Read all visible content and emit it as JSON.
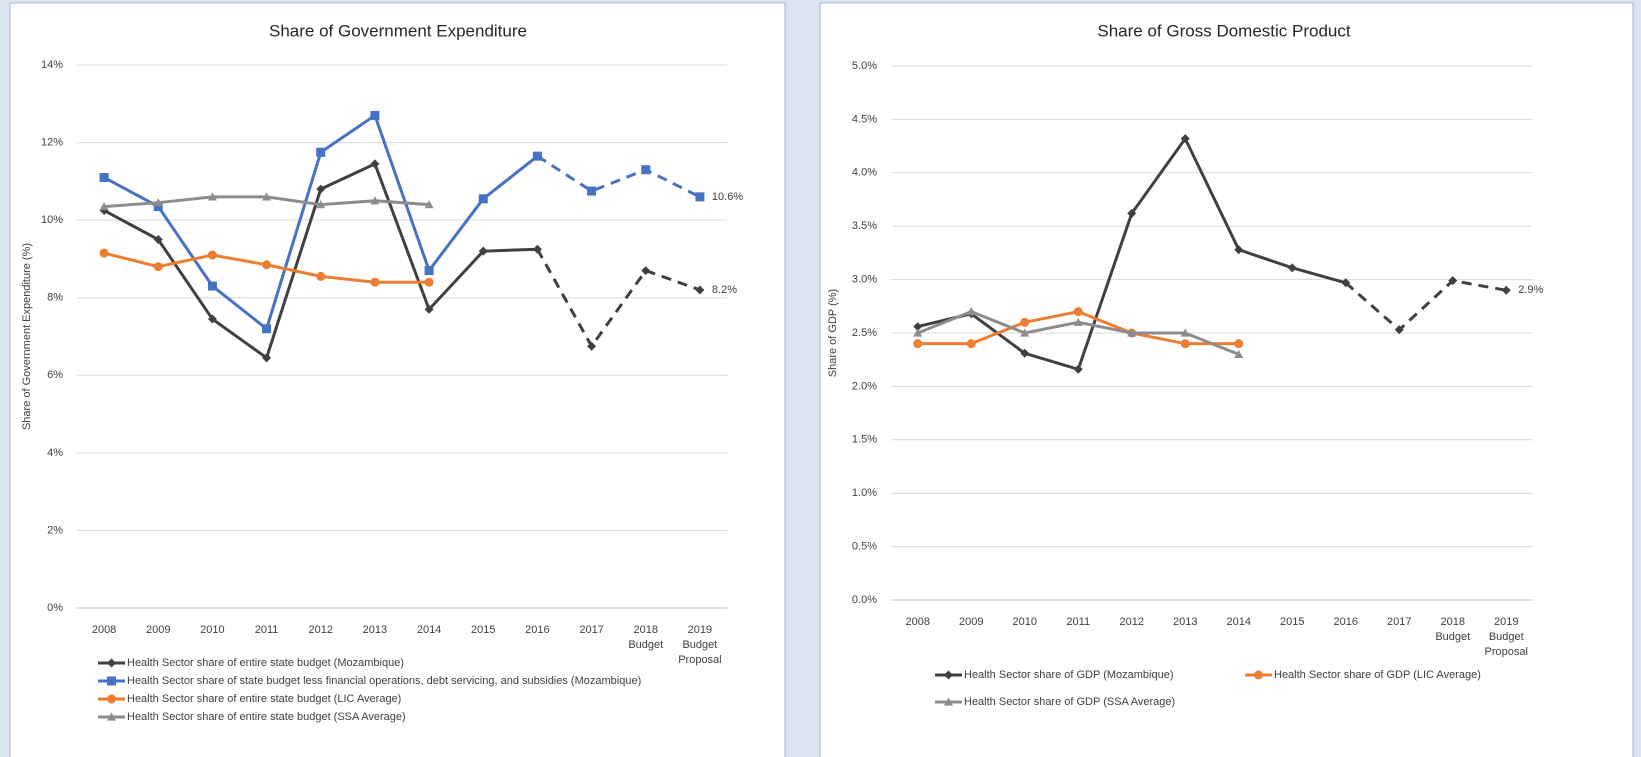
{
  "chart_data": [
    {
      "type": "line",
      "title": "Share of Government Expenditure",
      "y_label": "Share of Government Expenditure (%)",
      "categories": [
        "2008",
        "2009",
        "2010",
        "2011",
        "2012",
        "2013",
        "2014",
        "2015",
        "2016",
        "2017",
        "2018 Budget",
        "2019 Budget Proposal"
      ],
      "ylim": [
        0,
        14
      ],
      "yticks": [
        {
          "value": 0,
          "label": "0%"
        },
        {
          "value": 2,
          "label": "2%"
        },
        {
          "value": 4,
          "label": "4%"
        },
        {
          "value": 6,
          "label": "6%"
        },
        {
          "value": 8,
          "label": "8%"
        },
        {
          "value": 10,
          "label": "10%"
        },
        {
          "value": 12,
          "label": "12%"
        },
        {
          "value": 14,
          "label": "14%"
        }
      ],
      "grid": true,
      "legend": "bottom",
      "legend_columns": 1,
      "series": [
        {
          "name": "Health Sector share of entire state budget (Mozambique)",
          "color": "#404040",
          "marker": "diamond",
          "dash_start": 8,
          "values": [
            10.25,
            9.5,
            7.45,
            6.45,
            10.8,
            11.45,
            7.7,
            9.2,
            9.25,
            6.75,
            8.7,
            8.2
          ],
          "value_labels": [
            null,
            null,
            null,
            null,
            null,
            null,
            null,
            null,
            null,
            null,
            null,
            "8.2%"
          ]
        },
        {
          "name": "Health Sector share of state budget less financial operations, debt servicing, and subsidies (Mozambique)",
          "color": "#4472c4",
          "marker": "square",
          "dash_start": 8,
          "values": [
            11.1,
            10.35,
            8.3,
            7.2,
            11.75,
            12.7,
            8.7,
            10.55,
            11.65,
            10.75,
            11.3,
            10.6
          ],
          "value_labels": [
            null,
            null,
            null,
            null,
            null,
            null,
            null,
            null,
            null,
            null,
            null,
            "10.6%"
          ]
        },
        {
          "name": "Health Sector share of entire state budget (LIC Average)",
          "color": "#ed7d31",
          "marker": "circle",
          "values": [
            9.15,
            8.8,
            9.1,
            8.85,
            8.55,
            8.4,
            8.4,
            null,
            null,
            null,
            null,
            null
          ]
        },
        {
          "name": "Health Sector share of entire state budget (SSA Average)",
          "color": "#8c8c8c",
          "marker": "triangle",
          "values": [
            10.35,
            10.45,
            10.6,
            10.6,
            10.4,
            10.5,
            10.4,
            null,
            null,
            null,
            null,
            null
          ]
        }
      ]
    },
    {
      "type": "line",
      "title": "Share of Gross Domestic Product",
      "y_label": "Share of GDP (%)",
      "categories": [
        "2008",
        "2009",
        "2010",
        "2011",
        "2012",
        "2013",
        "2014",
        "2015",
        "2016",
        "2017",
        "2018 Budget",
        "2019 Budget Proposal"
      ],
      "ylim": [
        0,
        5
      ],
      "yticks": [
        {
          "value": 0,
          "label": "0.0%"
        },
        {
          "value": 0.5,
          "label": "0.5%"
        },
        {
          "value": 1,
          "label": "1.0%"
        },
        {
          "value": 1.5,
          "label": "1.5%"
        },
        {
          "value": 2,
          "label": "2.0%"
        },
        {
          "value": 2.5,
          "label": "2.5%"
        },
        {
          "value": 3,
          "label": "3.0%"
        },
        {
          "value": 3.5,
          "label": "3.5%"
        },
        {
          "value": 4,
          "label": "4.0%"
        },
        {
          "value": 4.5,
          "label": "4.5%"
        },
        {
          "value": 5,
          "label": "5.0%"
        }
      ],
      "grid": true,
      "legend": "bottom",
      "legend_columns": 2,
      "series": [
        {
          "name": "Health Sector share of GDP (Mozambique)",
          "color": "#404040",
          "marker": "diamond",
          "dash_start": 8,
          "values": [
            2.56,
            2.68,
            2.31,
            2.16,
            3.62,
            4.32,
            3.28,
            3.11,
            2.97,
            2.53,
            2.99,
            2.9
          ],
          "value_labels": [
            null,
            null,
            null,
            null,
            null,
            null,
            null,
            null,
            null,
            null,
            null,
            "2.9%"
          ]
        },
        {
          "name": "Health Sector share of GDP (LIC Average)",
          "color": "#ed7d31",
          "marker": "circle",
          "values": [
            2.4,
            2.4,
            2.6,
            2.7,
            2.5,
            2.4,
            2.4,
            null,
            null,
            null,
            null,
            null
          ]
        },
        {
          "name": "Health Sector share of GDP (SSA Average)",
          "color": "#8c8c8c",
          "marker": "triangle",
          "values": [
            2.5,
            2.7,
            2.5,
            2.6,
            2.5,
            2.5,
            2.3,
            null,
            null,
            null,
            null,
            null
          ]
        }
      ]
    }
  ]
}
